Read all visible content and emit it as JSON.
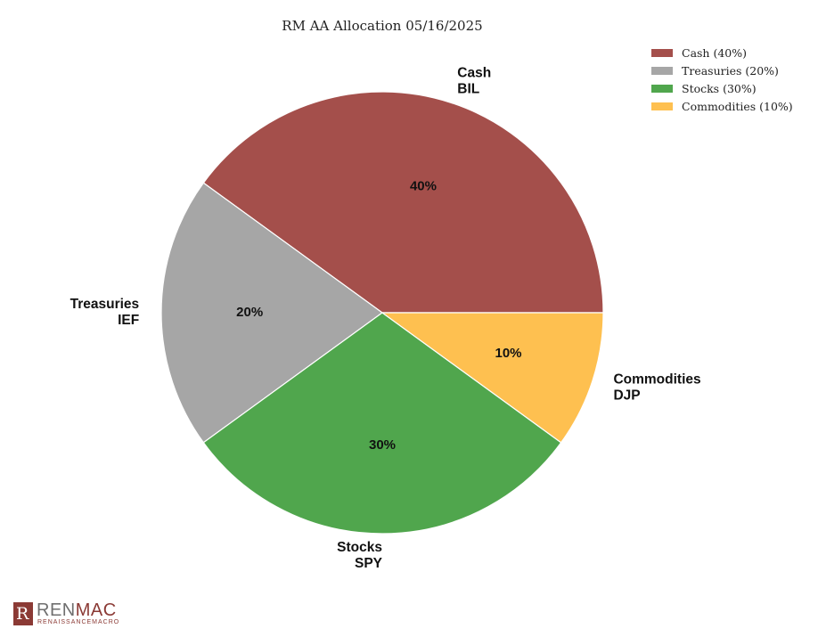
{
  "chart_data": {
    "type": "pie",
    "title": "RM AA Allocation 05/16/2025",
    "slices": [
      {
        "label_line1": "Cash",
        "label_line2": "BIL",
        "value": 40,
        "pct_label": "40%",
        "legend": "Cash (40%)",
        "color": "#a44f4b"
      },
      {
        "label_line1": "Treasuries",
        "label_line2": "IEF",
        "value": 20,
        "pct_label": "20%",
        "legend": "Treasuries (20%)",
        "color": "#a6a6a6"
      },
      {
        "label_line1": "Stocks",
        "label_line2": "SPY",
        "value": 30,
        "pct_label": "30%",
        "legend": "Stocks (30%)",
        "color": "#50a64d"
      },
      {
        "label_line1": "Commodities",
        "label_line2": "DJP",
        "value": 10,
        "pct_label": "10%",
        "legend": "Commodities (10%)",
        "color": "#fec050"
      }
    ],
    "start_angle_deg": 0,
    "direction": "counterclockwise",
    "legend_position": "top-right"
  },
  "logo": {
    "mark_letter": "R",
    "word_part1": "REN",
    "word_part2": "MAC",
    "subtitle": "RENAISSANCEMACRO"
  }
}
